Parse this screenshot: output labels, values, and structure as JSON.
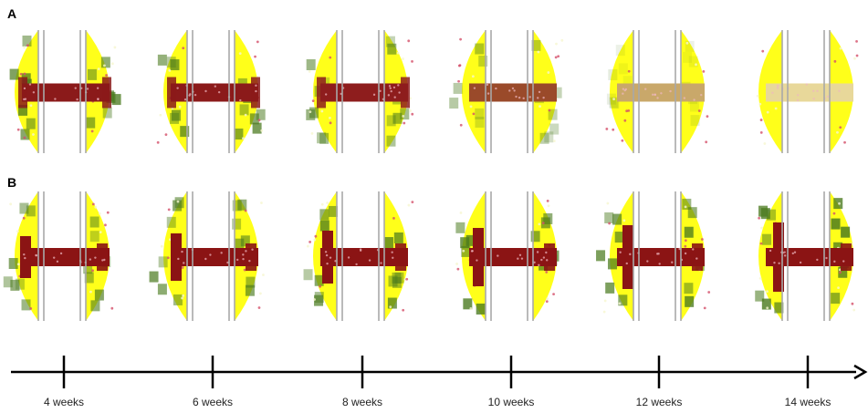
{
  "panels": [
    {
      "label": "A"
    },
    {
      "label": "B"
    }
  ],
  "timeline": {
    "labels": [
      "4 weeks",
      "6 weeks",
      "8 weeks",
      "10 weeks",
      "12 weeks",
      "14 weeks"
    ]
  }
}
